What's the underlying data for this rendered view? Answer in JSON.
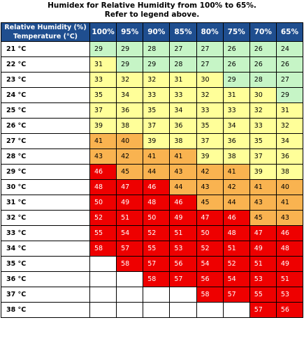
{
  "caption": {
    "line1": "Humidex for Relative Humidity from 100% to 65%.",
    "line2": "Refer to legend above."
  },
  "table": {
    "header_line1": "Relative Humidity (%)",
    "header_line2": "Temperature (°C)",
    "humidity_columns": [
      "100%",
      "95%",
      "90%",
      "85%",
      "80%",
      "75%",
      "70%",
      "65%"
    ],
    "rows": [
      {
        "temp": "21 °C",
        "values": [
          "29",
          "29",
          "28",
          "27",
          "27",
          "26",
          "26",
          "24"
        ]
      },
      {
        "temp": "22 °C",
        "values": [
          "31",
          "29",
          "29",
          "28",
          "27",
          "26",
          "26",
          "26"
        ]
      },
      {
        "temp": "23 °C",
        "values": [
          "33",
          "32",
          "32",
          "31",
          "30",
          "29",
          "28",
          "27"
        ]
      },
      {
        "temp": "24 °C",
        "values": [
          "35",
          "34",
          "33",
          "33",
          "32",
          "31",
          "30",
          "29"
        ]
      },
      {
        "temp": "25 °C",
        "values": [
          "37",
          "36",
          "35",
          "34",
          "33",
          "33",
          "32",
          "31"
        ]
      },
      {
        "temp": "26 °C",
        "values": [
          "39",
          "38",
          "37",
          "36",
          "35",
          "34",
          "33",
          "32"
        ]
      },
      {
        "temp": "27 °C",
        "values": [
          "41",
          "40",
          "39",
          "38",
          "37",
          "36",
          "35",
          "34"
        ]
      },
      {
        "temp": "28 °C",
        "values": [
          "43",
          "42",
          "41",
          "41",
          "39",
          "38",
          "37",
          "36"
        ]
      },
      {
        "temp": "29 °C",
        "values": [
          "46",
          "45",
          "44",
          "43",
          "42",
          "41",
          "39",
          "38"
        ]
      },
      {
        "temp": "30 °C",
        "values": [
          "48",
          "47",
          "46",
          "44",
          "43",
          "42",
          "41",
          "40"
        ]
      },
      {
        "temp": "31 °C",
        "values": [
          "50",
          "49",
          "48",
          "46",
          "45",
          "44",
          "43",
          "41"
        ]
      },
      {
        "temp": "32 °C",
        "values": [
          "52",
          "51",
          "50",
          "49",
          "47",
          "46",
          "45",
          "43"
        ]
      },
      {
        "temp": "33 °C",
        "values": [
          "55",
          "54",
          "52",
          "51",
          "50",
          "48",
          "47",
          "46"
        ]
      },
      {
        "temp": "34 °C",
        "values": [
          "58",
          "57",
          "55",
          "53",
          "52",
          "51",
          "49",
          "48"
        ]
      },
      {
        "temp": "35 °C",
        "values": [
          "",
          "58",
          "57",
          "56",
          "54",
          "52",
          "51",
          "49"
        ]
      },
      {
        "temp": "36 °C",
        "values": [
          "",
          "",
          "58",
          "57",
          "56",
          "54",
          "53",
          "51"
        ]
      },
      {
        "temp": "37 °C",
        "values": [
          "",
          "",
          "",
          "",
          "58",
          "57",
          "55",
          "53"
        ]
      },
      {
        "temp": "38 °C",
        "values": [
          "",
          "",
          "",
          "",
          "",
          "",
          "57",
          "56"
        ]
      }
    ]
  },
  "legend_colors": {
    "green": "#c6f5c6",
    "yellow": "#ffff99",
    "orange": "#f9b350",
    "red": "#ee0000",
    "header": "#1f4e8f"
  }
}
